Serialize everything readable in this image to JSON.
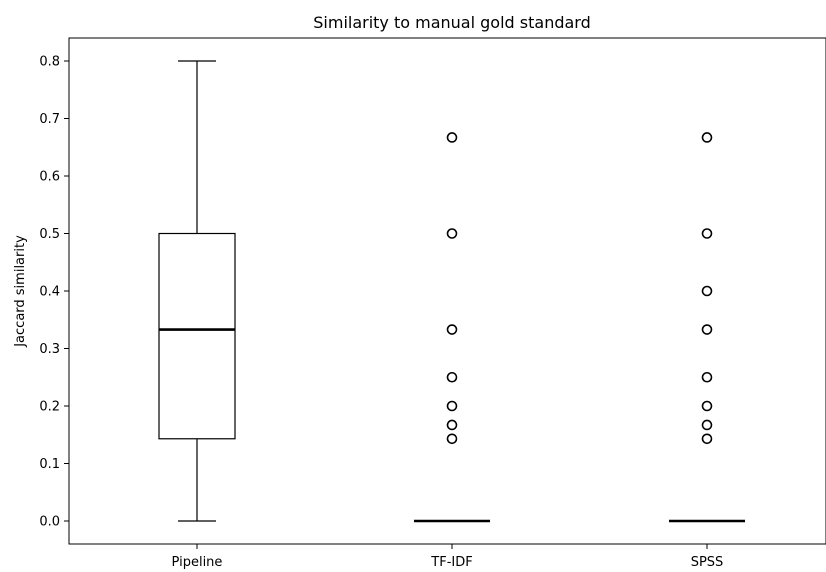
{
  "chart_data": {
    "type": "box",
    "title": "Similarity to manual gold standard",
    "xlabel": "",
    "ylabel": "Jaccard similarity",
    "ylim": [
      -0.04,
      0.84
    ],
    "yticks": [
      "0.0",
      "0.1",
      "0.2",
      "0.3",
      "0.4",
      "0.5",
      "0.6",
      "0.7",
      "0.8"
    ],
    "grid": false,
    "categories": [
      "Pipeline",
      "TF-IDF",
      "SPSS"
    ],
    "boxes": [
      {
        "category": "Pipeline",
        "whisker_low": 0.0,
        "q1": 0.143,
        "median": 0.333,
        "q3": 0.5,
        "whisker_high": 0.8,
        "outliers": []
      },
      {
        "category": "TF-IDF",
        "whisker_low": 0.0,
        "q1": 0.0,
        "median": 0.0,
        "q3": 0.0,
        "whisker_high": 0.0,
        "outliers": [
          0.667,
          0.5,
          0.333,
          0.25,
          0.2,
          0.167,
          0.143
        ]
      },
      {
        "category": "SPSS",
        "whisker_low": 0.0,
        "q1": 0.0,
        "median": 0.0,
        "q3": 0.0,
        "whisker_high": 0.0,
        "outliers": [
          0.667,
          0.5,
          0.4,
          0.333,
          0.25,
          0.2,
          0.167,
          0.143
        ]
      }
    ]
  }
}
